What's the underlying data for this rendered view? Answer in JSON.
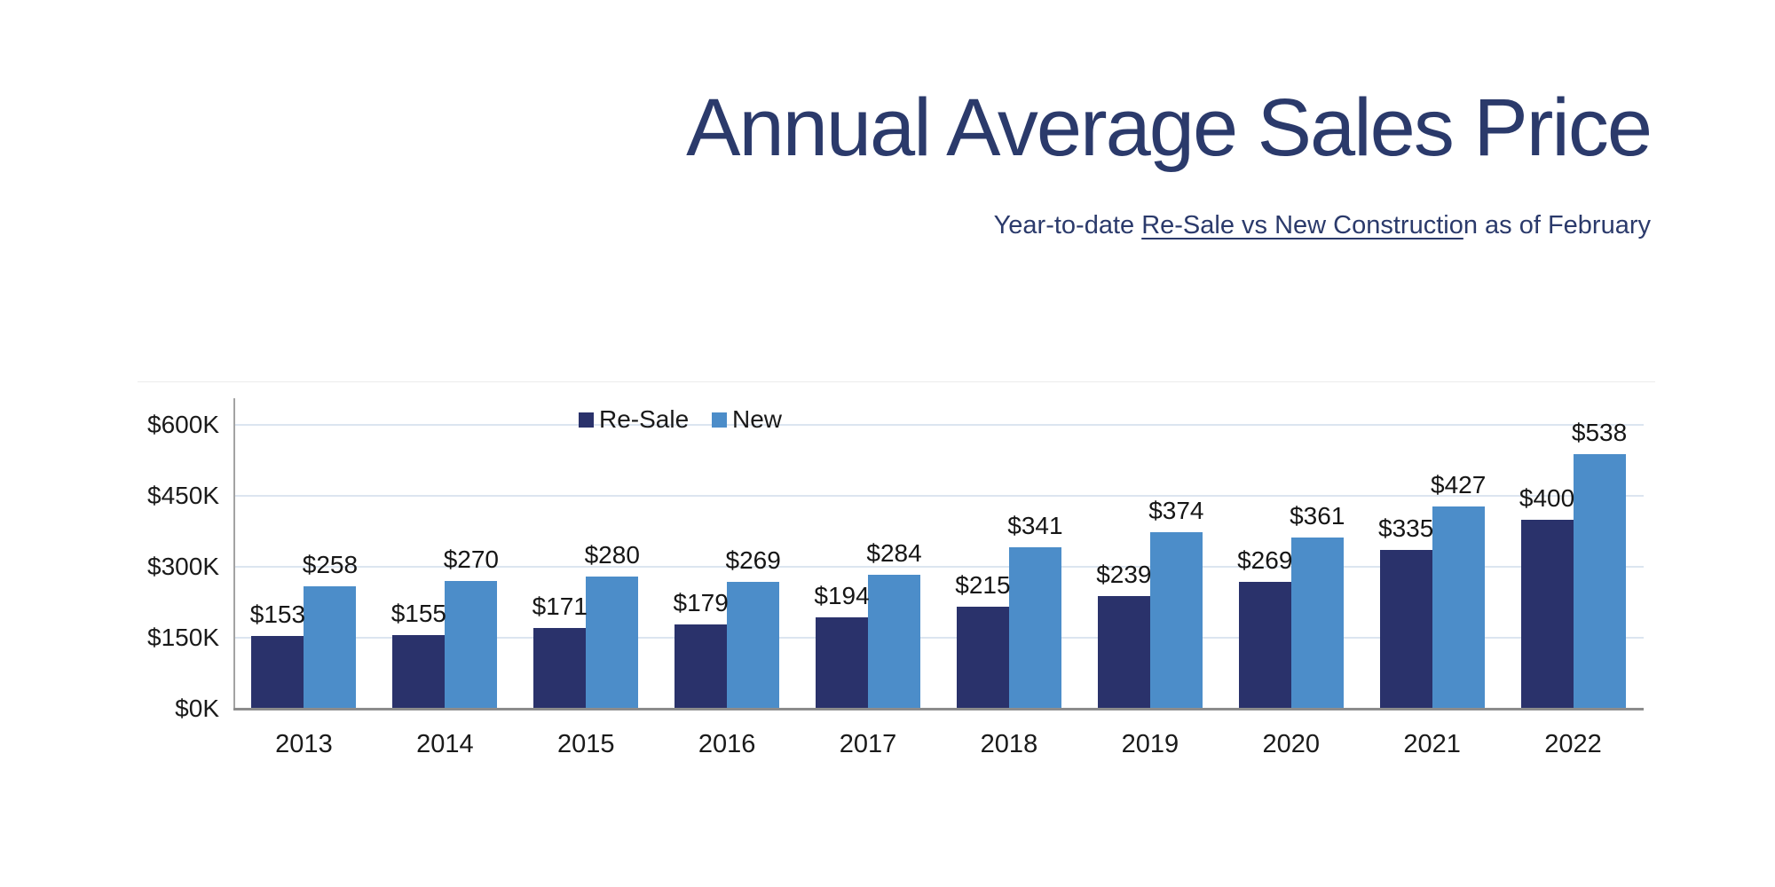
{
  "title": "Annual Average Sales Price",
  "subtitle": {
    "prefix": "Year-to-date ",
    "underlined": "Re-Sale vs New Constructio",
    "suffix": "n as of February"
  },
  "chart_data": {
    "type": "bar",
    "title": "Annual Average Sales Price",
    "subtitle": "Year-to-date Re-Sale vs New Construction as of February",
    "categories": [
      "2013",
      "2014",
      "2015",
      "2016",
      "2017",
      "2018",
      "2019",
      "2020",
      "2021",
      "2022"
    ],
    "series": [
      {
        "name": "Re-Sale",
        "color": "#2A326B",
        "values": [
          153,
          155,
          171,
          179,
          194,
          215,
          239,
          269,
          335,
          400
        ]
      },
      {
        "name": "New",
        "color": "#4C8DC9",
        "values": [
          258,
          270,
          280,
          269,
          284,
          341,
          374,
          361,
          427,
          538
        ]
      }
    ],
    "data_label_prefix": "$",
    "y_ticks": [
      {
        "label": "$0K",
        "value": 0
      },
      {
        "label": "$150K",
        "value": 150
      },
      {
        "label": "$300K",
        "value": 300
      },
      {
        "label": "$450K",
        "value": 450
      },
      {
        "label": "$600K",
        "value": 600
      }
    ],
    "ylim": [
      0,
      600
    ],
    "xlabel": "",
    "ylabel": "",
    "grid": true,
    "legend_position": "top-center"
  },
  "colors": {
    "title_text": "#2B3A6B",
    "resale_bar": "#2A326B",
    "new_bar": "#4C8DC9",
    "gridline": "#DCE5F0",
    "axis_x": "#8C8C8C",
    "axis_y": "#A3A3A3",
    "tick_text": "#1A1A1A",
    "data_label_text": "#161616",
    "frame_line": "#EBEBEB",
    "background": "#FFFFFF"
  }
}
